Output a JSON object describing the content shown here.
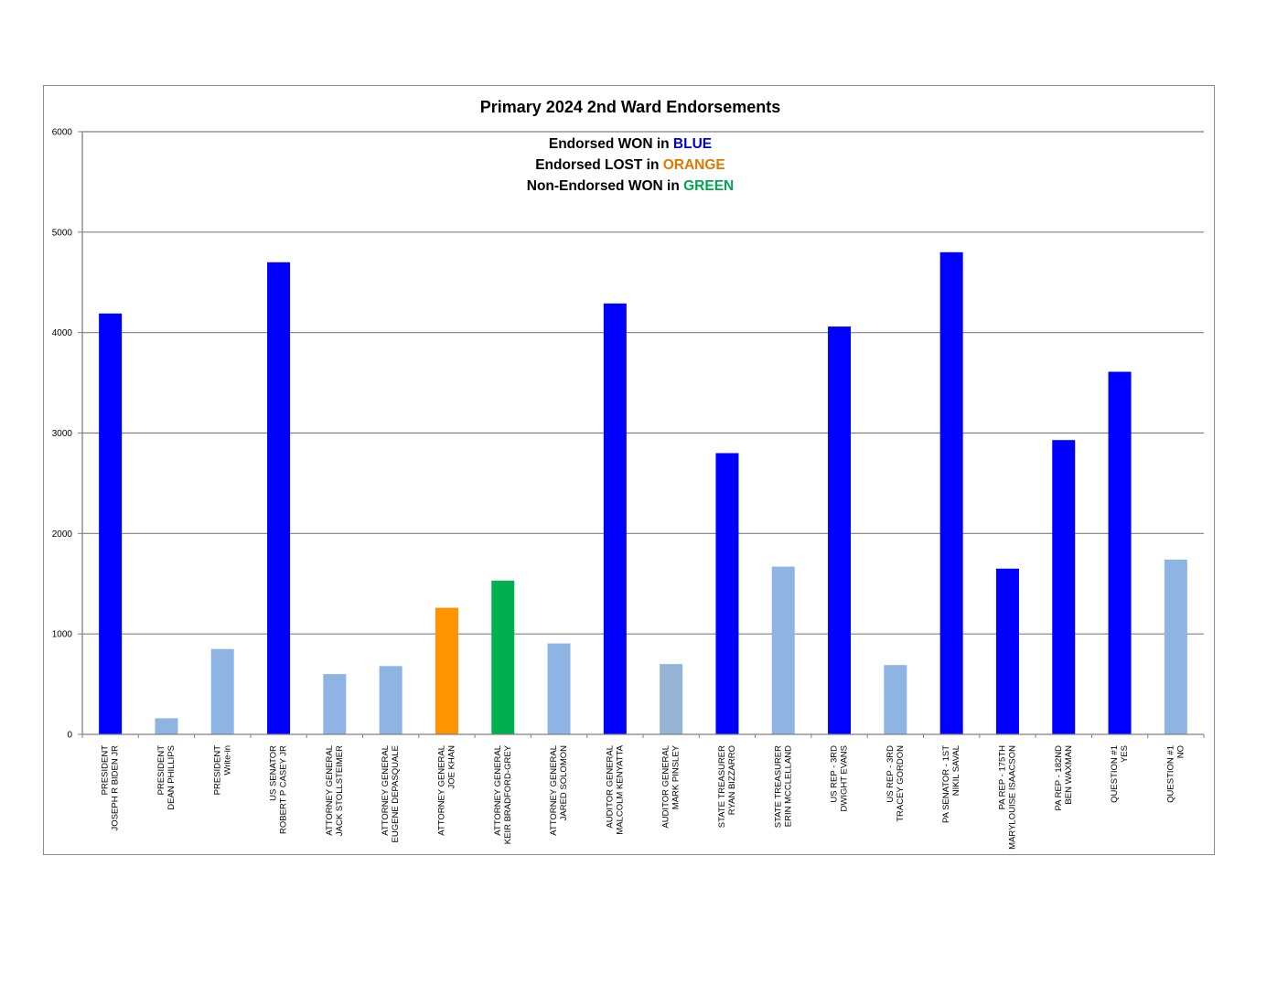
{
  "chart_data": {
    "type": "bar",
    "title": "Primary 2024 2nd Ward Endorsements",
    "legend_lines": [
      {
        "prefix": "Endorsed WON in ",
        "keyword": "BLUE",
        "color": "#0000cc"
      },
      {
        "prefix": "Endorsed LOST in ",
        "keyword": "ORANGE",
        "color": "#e07800"
      },
      {
        "prefix": "Non-Endorsed WON in ",
        "keyword": "GREEN",
        "color": "#00a651"
      }
    ],
    "ylim": [
      0,
      6000
    ],
    "yticks": [
      "0",
      "1000",
      "2000",
      "3000",
      "4000",
      "5000",
      "6000"
    ],
    "grid": true,
    "colors": {
      "endorsed_won": "#0000ff",
      "endorsed_lost": "#ff9400",
      "non_endorsed_won": "#00b050",
      "other": "#8eb4e3",
      "other_alt": "#95b3d7"
    },
    "bars": [
      {
        "line1": "PRESIDENT",
        "line2": "JOSEPH R BIDEN JR",
        "value": 4190,
        "status": "endorsed_won"
      },
      {
        "line1": "PRESIDENT",
        "line2": "DEAN PHILLIPS",
        "value": 160,
        "status": "other"
      },
      {
        "line1": "PRESIDENT",
        "line2": "Write-in",
        "value": 850,
        "status": "other"
      },
      {
        "line1": "US SENATOR",
        "line2": "ROBERT P CASEY JR",
        "value": 4700,
        "status": "endorsed_won"
      },
      {
        "line1": "ATTORNEY GENERAL",
        "line2": "JACK STOLLSTEIMER",
        "value": 600,
        "status": "other"
      },
      {
        "line1": "ATTORNEY GENERAL",
        "line2": "EUGENE DEPASQUALE",
        "value": 680,
        "status": "other"
      },
      {
        "line1": "ATTORNEY GENERAL",
        "line2": "JOE KHAN",
        "value": 1260,
        "status": "endorsed_lost"
      },
      {
        "line1": "ATTORNEY GENERAL",
        "line2": "KEIR BRADFORD-GREY",
        "value": 1530,
        "status": "non_endorsed_won"
      },
      {
        "line1": "ATTORNEY GENERAL",
        "line2": "JARED SOLOMON",
        "value": 905,
        "status": "other"
      },
      {
        "line1": "AUDITOR GENERAL",
        "line2": "MALCOLM KENYATTA",
        "value": 4290,
        "status": "endorsed_won"
      },
      {
        "line1": "AUDITOR GENERAL",
        "line2": "MARK PINSLEY",
        "value": 700,
        "status": "other_alt"
      },
      {
        "line1": "STATE TREASURER",
        "line2": "RYAN BIZZARRO",
        "value": 2800,
        "status": "endorsed_won"
      },
      {
        "line1": "STATE TREASURER",
        "line2": "ERIN MCCLELLAND",
        "value": 1670,
        "status": "other"
      },
      {
        "line1": "US REP - 3RD",
        "line2": "DWIGHT EVANS",
        "value": 4060,
        "status": "endorsed_won"
      },
      {
        "line1": "US REP - 3RD",
        "line2": "TRACEY GORDON",
        "value": 690,
        "status": "other"
      },
      {
        "line1": "PA SENATOR - 1ST",
        "line2": "NIKIL SAVAL",
        "value": 4800,
        "status": "endorsed_won"
      },
      {
        "line1": "PA REP - 175TH",
        "line2": "MARYLOUISE ISAACSON",
        "value": 1650,
        "status": "endorsed_won"
      },
      {
        "line1": "PA REP - 182ND",
        "line2": "BEN WAXMAN",
        "value": 2930,
        "status": "endorsed_won"
      },
      {
        "line1": "QUESTION #1",
        "line2": "YES",
        "value": 3610,
        "status": "endorsed_won"
      },
      {
        "line1": "QUESTION #1",
        "line2": "NO",
        "value": 1740,
        "status": "other"
      }
    ]
  }
}
